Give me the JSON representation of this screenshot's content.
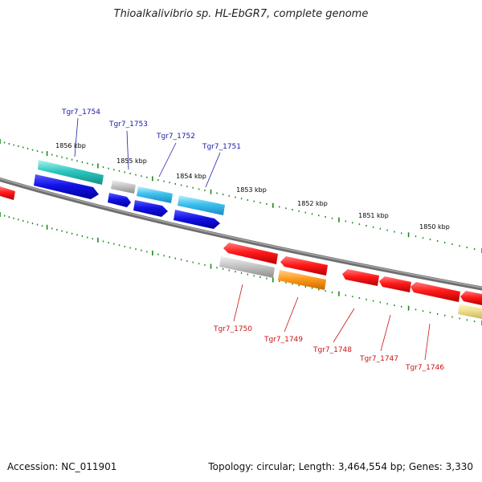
{
  "title": "Thioalkalivibrio sp. HL-EbGR7, complete genome",
  "footer": {
    "accession": "Accession: NC_011901",
    "topology": "Topology: circular; Length: 3,464,554 bp; Genes: 3,330"
  },
  "colors": {
    "backbone": "#808080",
    "scale_ticks": "#1c8a1c",
    "forward_label": "#1a1aa8",
    "reverse_label": "#c81414"
  },
  "scale_labels": [
    "1856 kbp",
    "1855 kbp",
    "1854 kbp",
    "1853 kbp",
    "1852 kbp",
    "1851 kbp",
    "1850 kbp"
  ],
  "forward_gene_labels": [
    "Tgr7_1754",
    "Tgr7_1753",
    "Tgr7_1752",
    "Tgr7_1751"
  ],
  "reverse_gene_labels": [
    "Tgr7_1750",
    "Tgr7_1749",
    "Tgr7_1748",
    "Tgr7_1747",
    "Tgr7_1746"
  ]
}
